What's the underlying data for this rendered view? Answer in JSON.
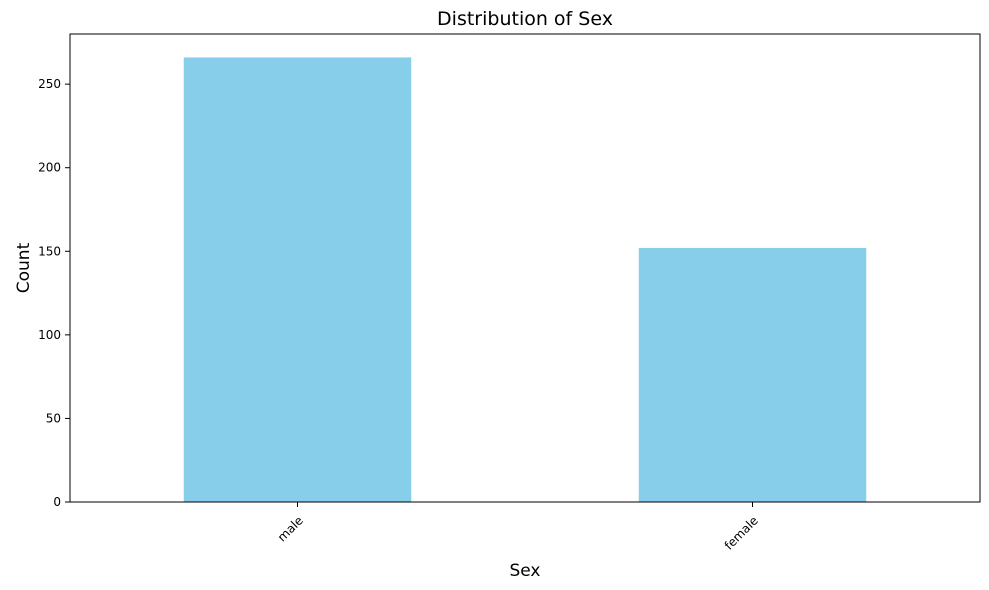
{
  "chart_data": {
    "type": "bar",
    "title": "Distribution of Sex",
    "xlabel": "Sex",
    "ylabel": "Count",
    "categories": [
      "male",
      "female"
    ],
    "values": [
      266,
      152
    ],
    "ylim": [
      0,
      280
    ],
    "yticks": [
      0,
      50,
      100,
      150,
      200,
      250
    ],
    "ytick_labels": [
      "0",
      "50",
      "100",
      "150",
      "200",
      "250"
    ],
    "xtick_rotation_deg": 45,
    "bar_color": "#87ceeb",
    "grid": false,
    "legend": "none"
  }
}
